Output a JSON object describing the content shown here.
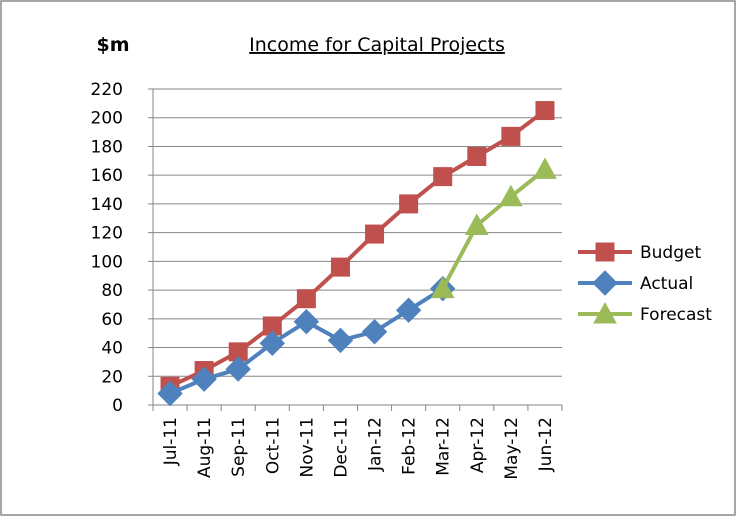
{
  "chart_data": {
    "type": "line",
    "title": "Income for Capital Projects",
    "y_label": "$m",
    "categories": [
      "Jul-11",
      "Aug-11",
      "Sep-11",
      "Oct-11",
      "Nov-11",
      "Dec-11",
      "Jan-12",
      "Feb-12",
      "Mar-12",
      "Apr-12",
      "May-12",
      "Jun-12"
    ],
    "series": [
      {
        "name": "Budget",
        "color": "#c0504d",
        "marker": "square",
        "values": [
          13,
          24,
          37,
          55,
          74,
          96,
          119,
          140,
          159,
          173,
          187,
          205
        ]
      },
      {
        "name": "Actual",
        "color": "#4f81bd",
        "marker": "diamond",
        "values": [
          8,
          18,
          25,
          43,
          58,
          45,
          51,
          66,
          81,
          null,
          null,
          null
        ]
      },
      {
        "name": "Forecast",
        "color": "#9bbb59",
        "marker": "triangle",
        "values": [
          null,
          null,
          null,
          null,
          null,
          null,
          null,
          null,
          81,
          125,
          145,
          164
        ]
      }
    ],
    "ylim": [
      0,
      220
    ],
    "yticks": [
      0,
      20,
      40,
      60,
      80,
      100,
      120,
      140,
      160,
      180,
      200,
      220
    ],
    "grid": true,
    "legend": "right"
  }
}
